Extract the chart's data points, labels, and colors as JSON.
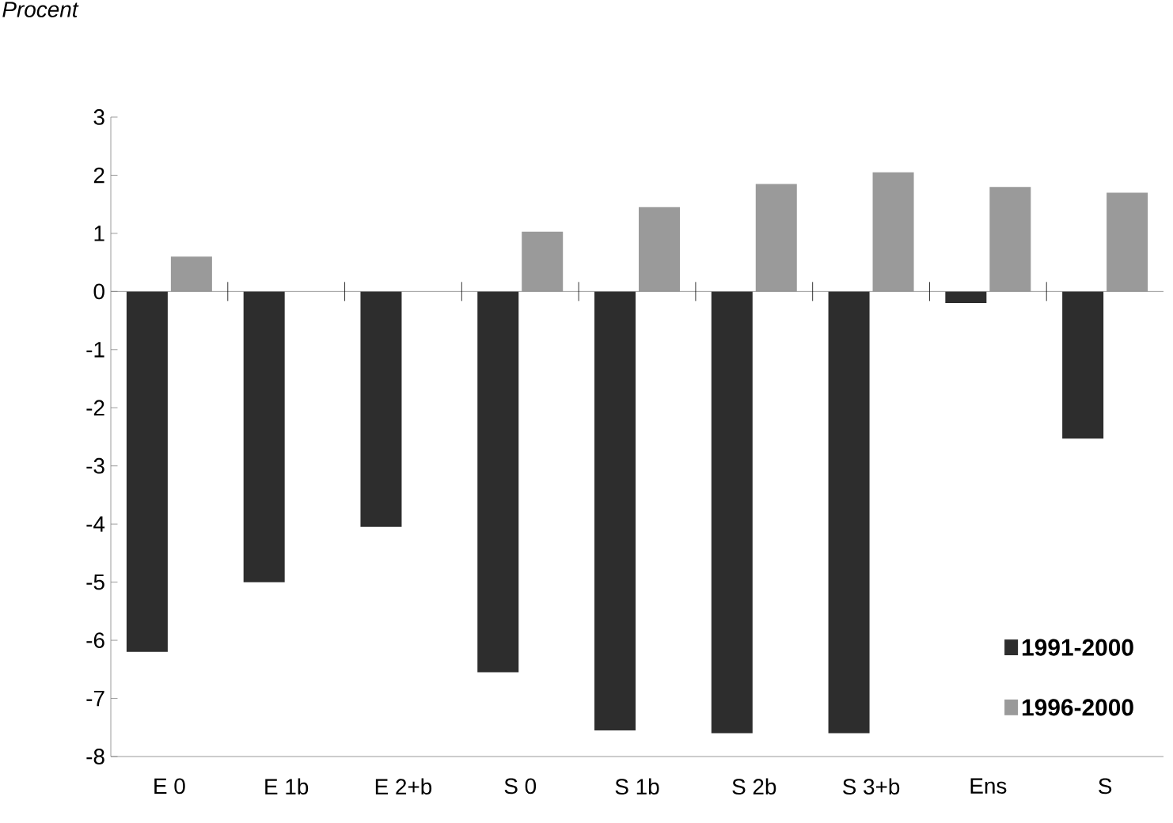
{
  "chart_data": {
    "type": "bar",
    "annotations": [
      "Procent"
    ],
    "categories": [
      "E 0",
      "E 1b",
      "E 2+b",
      "S 0",
      "S 1b",
      "S 2b",
      "S 3+b",
      "Ens",
      "S"
    ],
    "series": [
      {
        "name": "1991-2000",
        "color": "#2d2d2d",
        "values": [
          -6.2,
          -5.0,
          -4.05,
          -6.55,
          -7.55,
          -7.6,
          -7.6,
          -0.2,
          -2.53
        ]
      },
      {
        "name": "1996-2000",
        "color": "#9a9a9a",
        "values": [
          0.6,
          null,
          null,
          1.03,
          1.45,
          1.85,
          2.05,
          1.8,
          1.7
        ]
      }
    ],
    "ref_lines": [
      {
        "axis": "y",
        "value": 0,
        "color": "#808080"
      }
    ],
    "ylim": [
      -8,
      3
    ],
    "yticks": [
      -8,
      -7,
      -6,
      -5,
      -4,
      -3,
      -2,
      -1,
      0,
      1,
      2,
      3
    ],
    "legend": "bottom right"
  }
}
